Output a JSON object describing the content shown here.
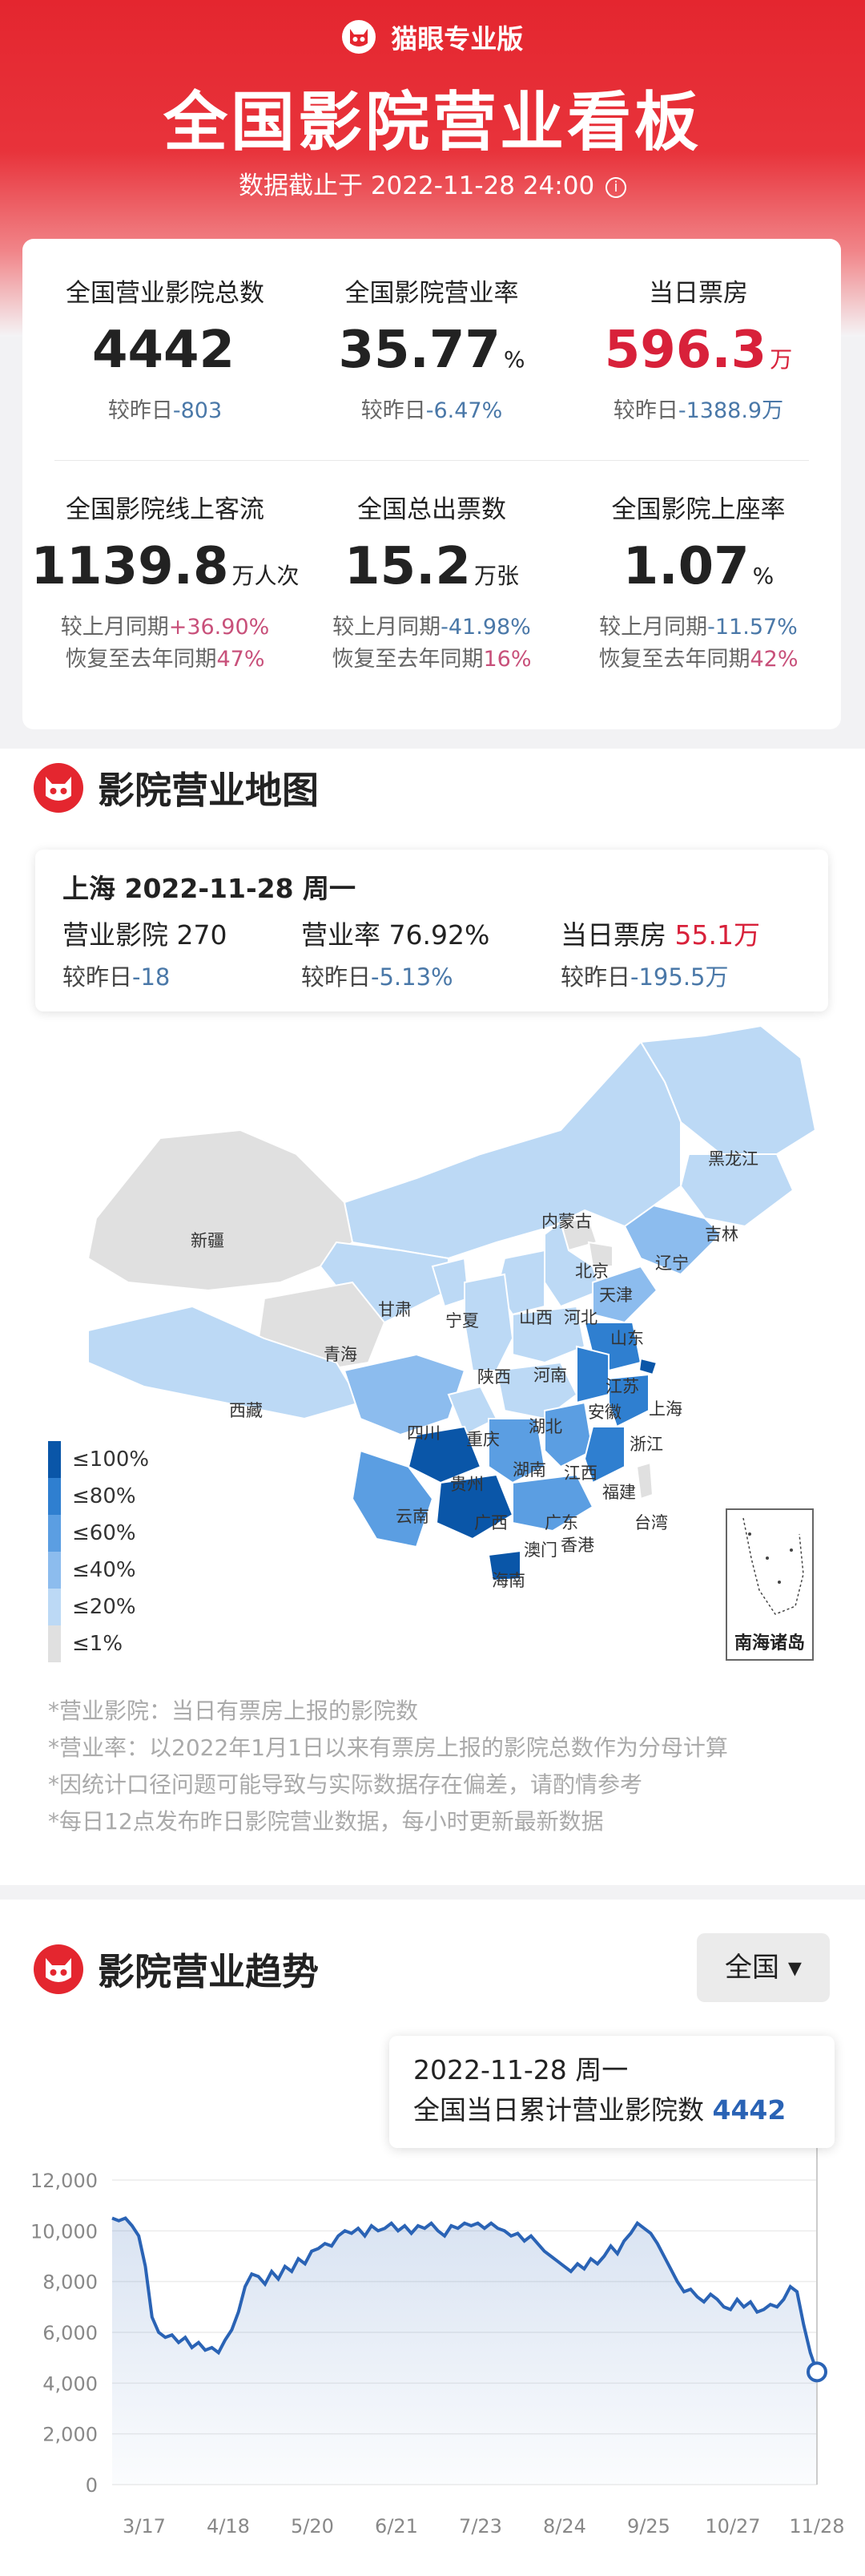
{
  "header": {
    "brand": "猫眼专业版",
    "title": "全国影院营业看板",
    "subtitle": "数据截止于 2022-11-28 24:00",
    "info_icon": "i"
  },
  "stats": [
    {
      "label": "全国营业影院总数",
      "value": "4442",
      "unit": "",
      "cmp_prefix": "较昨日",
      "cmp_value": "-803"
    },
    {
      "label": "全国影院营业率",
      "value": "35.77",
      "unit": "%",
      "cmp_prefix": "较昨日",
      "cmp_value": "-6.47%"
    },
    {
      "label": "当日票房",
      "value": "596.3",
      "unit": "万",
      "cmp_prefix": "较昨日",
      "cmp_value": "-1388.9万"
    },
    {
      "label": "全国影院线上客流",
      "value": "1139.8",
      "unit": "万人次",
      "cmp1_prefix": "较上月同期",
      "cmp1_value": "+36.90%",
      "cmp2_prefix": "恢复至去年同期",
      "cmp2_value": "47%"
    },
    {
      "label": "全国总出票数",
      "value": "15.2",
      "unit": "万张",
      "cmp1_prefix": "较上月同期",
      "cmp1_value": "-41.98%",
      "cmp2_prefix": "恢复至去年同期",
      "cmp2_value": "16%"
    },
    {
      "label": "全国影院上座率",
      "value": "1.07",
      "unit": "%",
      "cmp1_prefix": "较上月同期",
      "cmp1_value": "-11.57%",
      "cmp2_prefix": "恢复至去年同期",
      "cmp2_value": "42%"
    }
  ],
  "map_section": {
    "title": "影院营业地图",
    "province_card": {
      "heading": "上海 2022-11-28 周一",
      "open_label": "营业影院 270",
      "open_cmp_prefix": "较昨日",
      "open_cmp_value": "-18",
      "rate_label": "营业率 76.92%",
      "rate_cmp_prefix": "较昨日",
      "rate_cmp_value": "-5.13%",
      "box_label": "当日票房",
      "box_value": "55.1万",
      "box_cmp_prefix": "较昨日",
      "box_cmp_value": "-195.5万"
    },
    "provinces": [
      "黑龙江",
      "吉林",
      "内蒙古",
      "辽宁",
      "新疆",
      "北京",
      "天津",
      "甘肃",
      "宁夏",
      "山西",
      "河北",
      "青海",
      "山东",
      "陕西",
      "河南",
      "江苏",
      "西藏",
      "四川",
      "重庆",
      "湖北",
      "安徽",
      "上海",
      "浙江",
      "贵州",
      "湖南",
      "江西",
      "福建",
      "云南",
      "广西",
      "广东",
      "台湾",
      "香港",
      "澳门",
      "海南"
    ],
    "legend": [
      "≤100%",
      "≤80%",
      "≤60%",
      "≤40%",
      "≤20%",
      "≤1%"
    ],
    "legend_colors": [
      "#0a56a8",
      "#2f7fd0",
      "#5b9ee2",
      "#8cbcee",
      "#bcd9f5",
      "#e0e0e0"
    ],
    "inset_label": "南海诸岛",
    "notes": [
      "*营业影院：当日有票房上报的影院数",
      "*营业率：以2022年1月1日以来有票房上报的影院总数作为分母计算",
      "*因统计口径问题可能导致与实际数据存在偏差，请酌情参考",
      "*每日12点发布昨日影院营业数据，每小时更新最新数据"
    ]
  },
  "trend_section": {
    "title": "影院营业趋势",
    "dropdown": "全国",
    "tooltip_line1": "2022-11-28 周一",
    "tooltip_line2": "全国当日累计营业影院数",
    "tooltip_value": "4442"
  },
  "chart_data": {
    "type": "area",
    "x_ticks": [
      "3/17",
      "4/18",
      "5/20",
      "6/21",
      "7/23",
      "8/24",
      "9/25",
      "10/27",
      "11/28"
    ],
    "y_ticks": [
      "12,000",
      "10,000",
      "8,000",
      "6,000",
      "4,000",
      "2,000",
      "0"
    ],
    "ylim": [
      0,
      12000
    ],
    "color": "#2a63b5",
    "series": [
      {
        "values": [
          10500,
          10400,
          10500,
          10200,
          9800,
          8600,
          6600,
          6000,
          5800,
          5900,
          5600,
          5800,
          5400,
          5600,
          5300,
          5400,
          5200,
          5700,
          6100,
          6800,
          7800,
          8300,
          8200,
          7900,
          8400,
          8100,
          8600,
          8400,
          8900,
          8700,
          9200,
          9300,
          9500,
          9400,
          9800,
          10000,
          9900,
          10100,
          9800,
          10200,
          10000,
          10100,
          10300,
          10000,
          10200,
          9900,
          10200,
          10100,
          10300,
          10000,
          9800,
          10200,
          10100,
          10300,
          10200,
          10300,
          10100,
          10300,
          10100,
          10000,
          9800,
          9900,
          9600,
          9800,
          9500,
          9200,
          9000,
          8800,
          8600,
          8400,
          8700,
          8500,
          8900,
          8700,
          9000,
          9400,
          9100,
          9600,
          9900,
          10300,
          10100,
          9900,
          9500,
          9000,
          8500,
          8000,
          7600,
          7700,
          7400,
          7200,
          7500,
          7300,
          7000,
          6900,
          7300,
          7000,
          7200,
          6800,
          6900,
          7100,
          7000,
          7300,
          7800,
          7600,
          6300,
          5200,
          4442
        ]
      }
    ]
  }
}
